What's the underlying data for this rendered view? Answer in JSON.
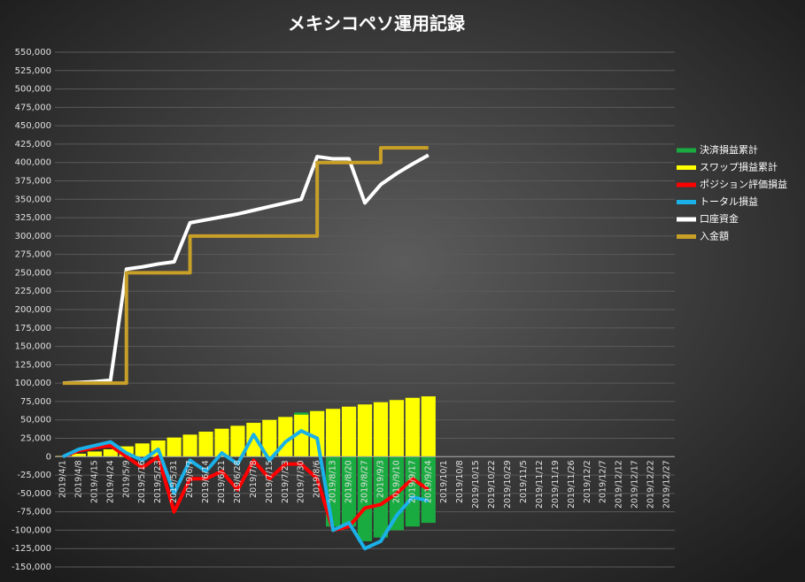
{
  "chart_data": {
    "type": "combo",
    "title": "メキシコペソ運用記録",
    "categories": [
      "2019/4/1",
      "2019/4/8",
      "2019/4/15",
      "2019/4/24",
      "2019/5/9",
      "2019/5/16",
      "2019/5/23",
      "2019/5/31",
      "2019/6/7",
      "2019/6/14",
      "2019/6/21",
      "2019/6/28",
      "2019/7/8",
      "2019/7/15",
      "2019/7/23",
      "2019/7/30",
      "2019/8/6",
      "2019/8/13",
      "2019/8/20",
      "2019/8/27",
      "2019/9/3",
      "2019/9/10",
      "2019/9/17",
      "2019/9/24",
      "2019/10/1",
      "2019/10/8",
      "2019/10/15",
      "2019/10/22",
      "2019/10/29",
      "2019/11/5",
      "2019/11/12",
      "2019/11/19",
      "2019/11/26",
      "2019/12/2",
      "2019/12/7",
      "2019/12/12",
      "2019/12/17",
      "2019/12/22",
      "2019/12/27"
    ],
    "series": [
      {
        "name": "決済損益累計",
        "type": "bar",
        "color": "#1aab40",
        "values": [
          0,
          0,
          0,
          0,
          0,
          0,
          0,
          0,
          0,
          0,
          0,
          0,
          0,
          0,
          0,
          60000,
          62000,
          -95000,
          -95000,
          -115000,
          -110000,
          -100000,
          -95000,
          -90000,
          null,
          null,
          null,
          null,
          null,
          null,
          null,
          null,
          null,
          null,
          null,
          null,
          null,
          null,
          null
        ]
      },
      {
        "name": "スワップ損益累計",
        "type": "bar",
        "color": "#ffff00",
        "values": [
          1000,
          4000,
          7000,
          10000,
          14000,
          18000,
          22000,
          26000,
          30000,
          34000,
          38000,
          42000,
          46000,
          50000,
          54000,
          57000,
          62000,
          65000,
          68000,
          71000,
          74000,
          77000,
          80000,
          82000,
          null,
          null,
          null,
          null,
          null,
          null,
          null,
          null,
          null,
          null,
          null,
          null,
          null,
          null,
          null
        ]
      },
      {
        "name": "ポジション評価損益",
        "type": "line",
        "color": "#ff0000",
        "values": [
          0,
          8000,
          12000,
          15000,
          0,
          -15000,
          0,
          -75000,
          -30000,
          -30000,
          -20000,
          -45000,
          -5000,
          -30000,
          -10000,
          -10000,
          -30000,
          -100000,
          -95000,
          -70000,
          -65000,
          -50000,
          -30000,
          -45000,
          null,
          null,
          null,
          null,
          null,
          null,
          null,
          null,
          null,
          null,
          null,
          null,
          null,
          null,
          null
        ]
      },
      {
        "name": "トータル損益",
        "type": "line",
        "color": "#1ab0e8",
        "values": [
          0,
          10000,
          15000,
          20000,
          5000,
          -5000,
          10000,
          -50000,
          -5000,
          -20000,
          5000,
          -10000,
          30000,
          -5000,
          20000,
          35000,
          25000,
          -100000,
          -90000,
          -125000,
          -115000,
          -80000,
          -55000,
          -60000,
          null,
          null,
          null,
          null,
          null,
          null,
          null,
          null,
          null,
          null,
          null,
          null,
          null,
          null,
          null
        ]
      },
      {
        "name": "口座資金",
        "type": "line",
        "color": "#ffffff",
        "values": [
          100000,
          101000,
          102000,
          104000,
          255000,
          258000,
          262000,
          265000,
          318000,
          322000,
          326000,
          330000,
          335000,
          340000,
          345000,
          350000,
          408000,
          405000,
          405000,
          345000,
          370000,
          385000,
          398000,
          410000,
          null,
          null,
          null,
          null,
          null,
          null,
          null,
          null,
          null,
          null,
          null,
          null,
          null,
          null,
          null
        ]
      },
      {
        "name": "入金額",
        "type": "step",
        "color": "#c8a028",
        "values": [
          100000,
          100000,
          100000,
          100000,
          250000,
          250000,
          250000,
          250000,
          300000,
          300000,
          300000,
          300000,
          300000,
          300000,
          300000,
          300000,
          400000,
          400000,
          400000,
          400000,
          420000,
          420000,
          420000,
          420000,
          null,
          null,
          null,
          null,
          null,
          null,
          null,
          null,
          null,
          null,
          null,
          null,
          null,
          null,
          null
        ]
      }
    ],
    "ylim": [
      -150000,
      550000
    ],
    "yticks": [
      {
        "value": -150000,
        "label": "-150,000"
      },
      {
        "value": -125000,
        "label": "-125,000"
      },
      {
        "value": -100000,
        "label": "-100,000"
      },
      {
        "value": -75000,
        "label": "-75,000"
      },
      {
        "value": -50000,
        "label": "-50,000"
      },
      {
        "value": -25000,
        "label": "-25,000"
      },
      0,
      {
        "value": 25000,
        "label": "25,000"
      },
      {
        "value": 50000,
        "label": "50,000"
      },
      {
        "value": 75000,
        "label": "75,000"
      },
      {
        "value": 100000,
        "label": "100,000"
      },
      {
        "value": 125000,
        "label": "125,000"
      },
      {
        "value": 150000,
        "label": "150,000"
      },
      {
        "value": 175000,
        "label": "175,000"
      },
      {
        "value": 200000,
        "label": "200,000"
      },
      {
        "value": 225000,
        "label": "225,000"
      },
      {
        "value": 250000,
        "label": "250,000"
      },
      {
        "value": 275000,
        "label": "275,000"
      },
      {
        "value": 300000,
        "label": "300,000"
      },
      {
        "value": 325000,
        "label": "325,000"
      },
      {
        "value": 350000,
        "label": "350,000"
      },
      {
        "value": 375000,
        "label": "375,000"
      },
      {
        "value": 400000,
        "label": "400,000"
      },
      {
        "value": 425000,
        "label": "425,000"
      },
      {
        "value": 450000,
        "label": "450,000"
      },
      {
        "value": 475000,
        "label": "475,000"
      },
      {
        "value": 500000,
        "label": "500,000"
      },
      {
        "value": 525000,
        "label": "525,000"
      },
      {
        "value": 550000,
        "label": "550,000"
      }
    ],
    "grid": true,
    "legend": "right"
  }
}
